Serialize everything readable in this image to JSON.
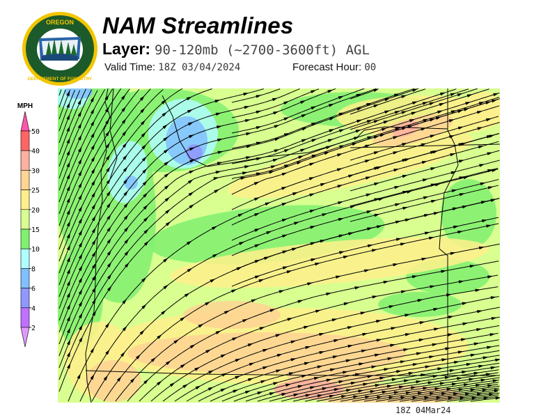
{
  "header": {
    "title": "NAM Streamlines",
    "layer_label": "Layer:",
    "layer_value": "90-120mb (~2700-3600ft) AGL",
    "valid_time_label": "Valid Time:",
    "valid_time_value": "18Z 03/04/2024",
    "forecast_hour_label": "Forecast Hour:",
    "forecast_hour_value": "00"
  },
  "logo": {
    "top_text": "OREGON",
    "bottom_text": "DEPARTMENT OF FORESTRY"
  },
  "legend": {
    "unit": "MPH",
    "ticks": [
      "50",
      "40",
      "30",
      "25",
      "20",
      "15",
      "10",
      "8",
      "6",
      "4",
      "2"
    ],
    "colors": [
      "#ff6464",
      "#ffb0a0",
      "#ffd494",
      "#fff08c",
      "#d8ff90",
      "#80f070",
      "#b0ffff",
      "#80c0ff",
      "#9098ff",
      "#c070ff"
    ],
    "over_color": "#ff55aa",
    "under_color": "#e09aff"
  },
  "map": {
    "footer_timestamp": "18Z 04Mar24",
    "base_color": "#d8ff90"
  }
}
